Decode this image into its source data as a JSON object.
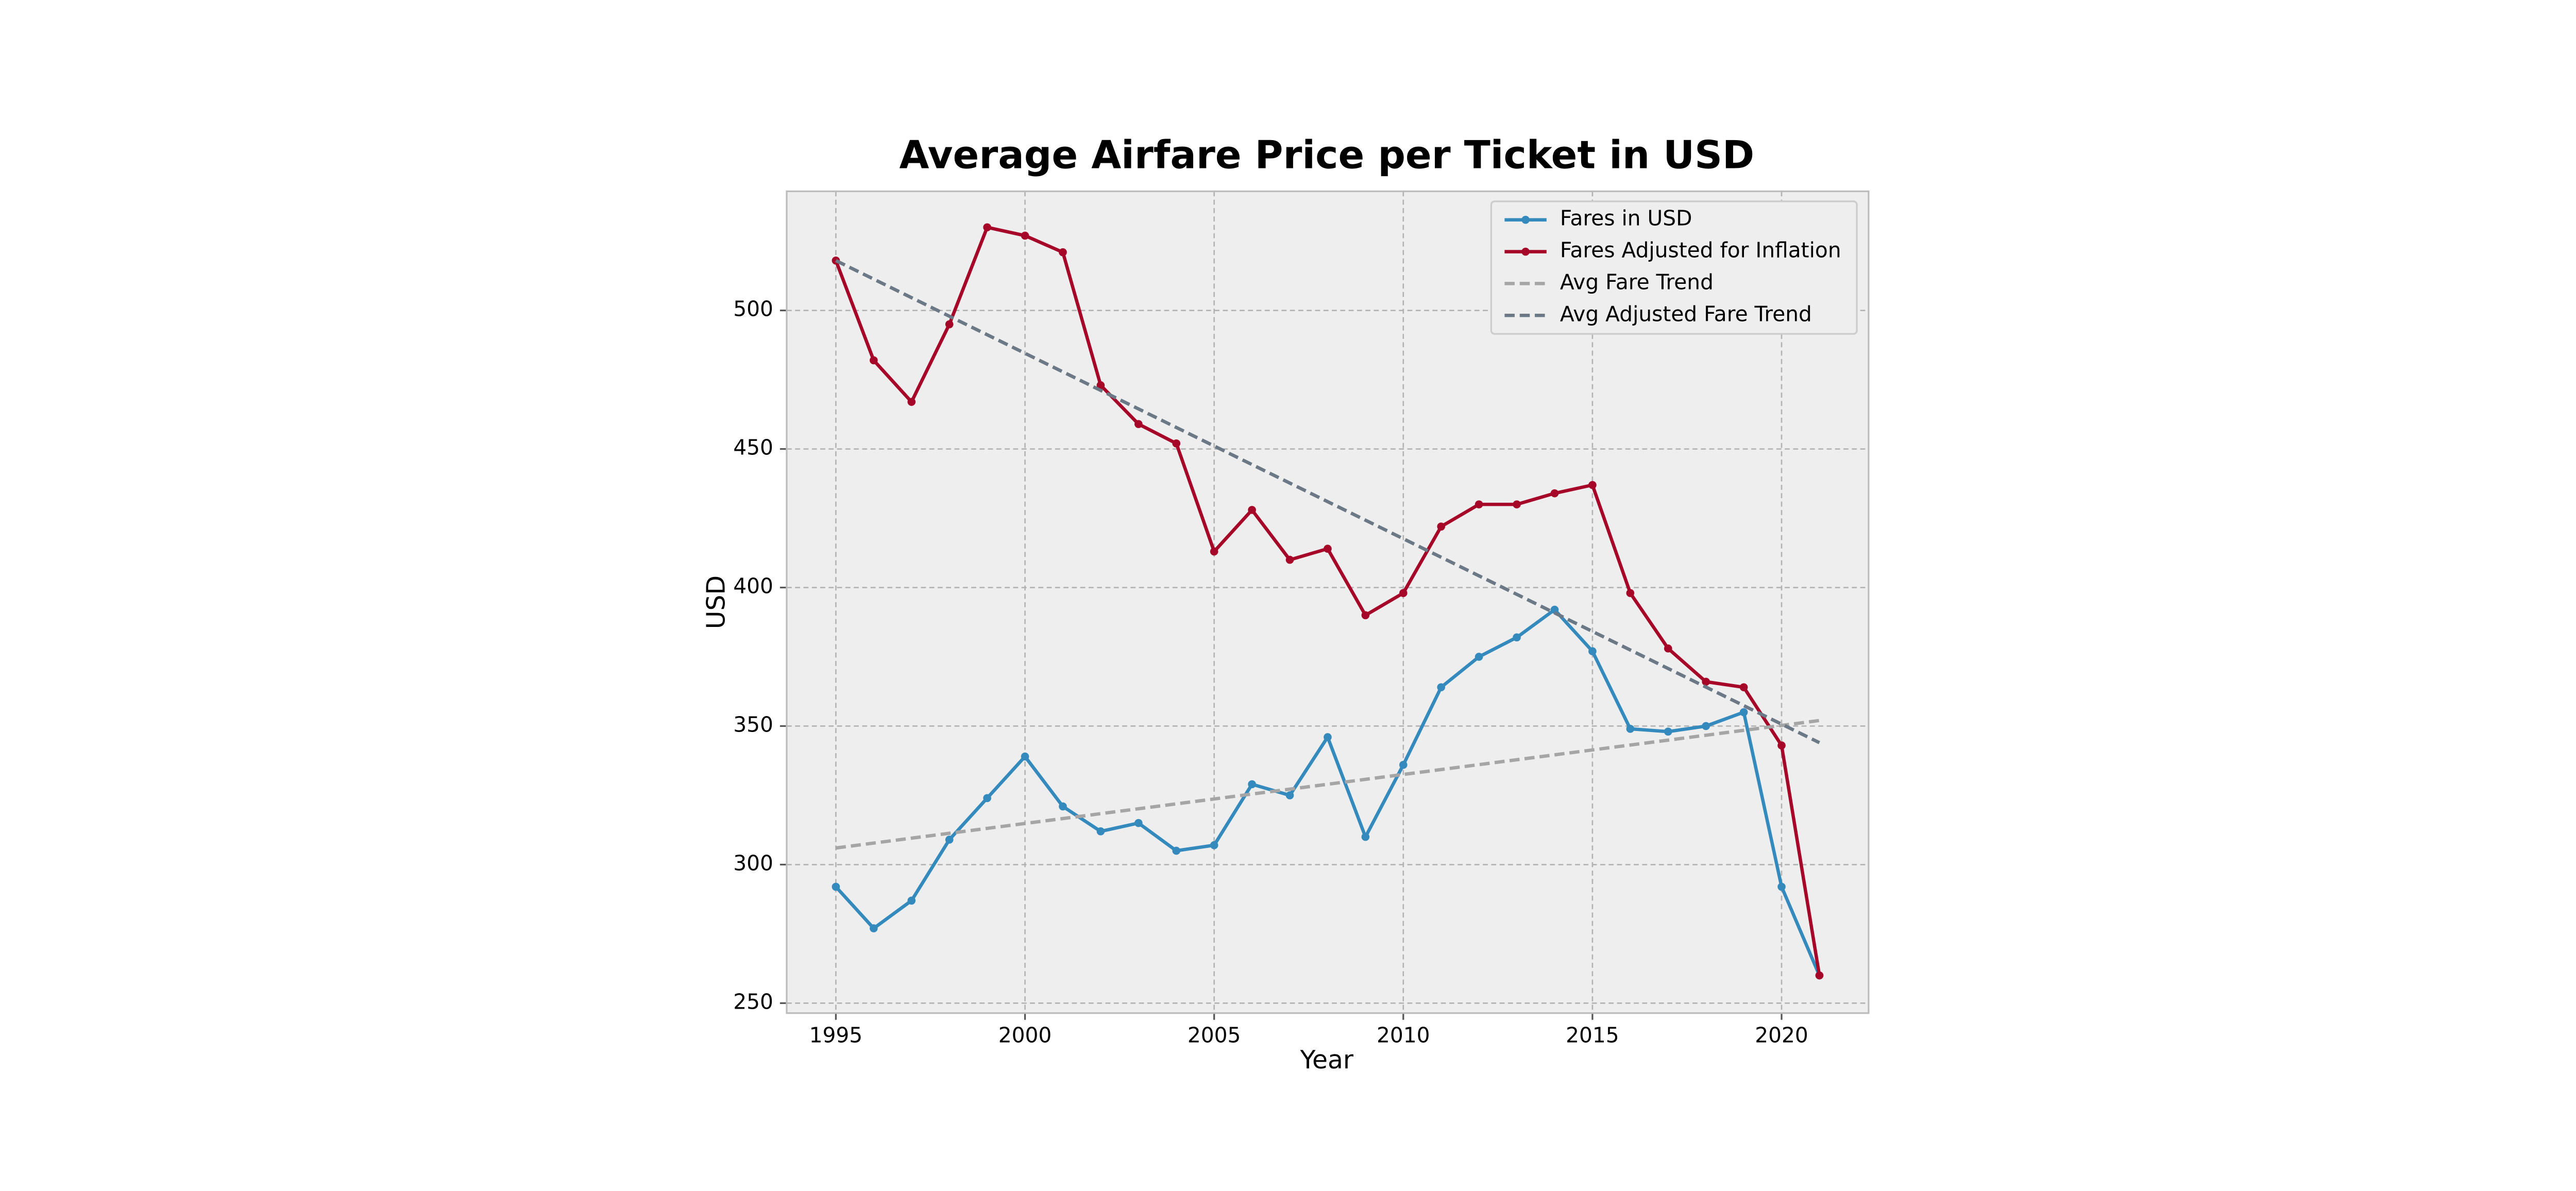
{
  "chart_data": {
    "type": "line",
    "title": "Average Airfare Price per Ticket in USD",
    "x_label": "Year",
    "y_label": "USD",
    "x": [
      1995,
      1996,
      1997,
      1998,
      1999,
      2000,
      2001,
      2002,
      2003,
      2004,
      2005,
      2006,
      2007,
      2008,
      2009,
      2010,
      2011,
      2012,
      2013,
      2014,
      2015,
      2016,
      2017,
      2018,
      2019,
      2020,
      2021
    ],
    "series": [
      {
        "name": "Fares in USD",
        "color": "#348abd",
        "marker": true,
        "linestyle": "solid",
        "values": [
          292,
          277,
          287,
          309,
          324,
          339,
          321,
          312,
          315,
          305,
          307,
          329,
          325,
          346,
          310,
          336,
          364,
          375,
          382,
          392,
          377,
          349,
          348,
          350,
          355,
          292,
          260
        ]
      },
      {
        "name": "Fares Adjusted for Inflation",
        "color": "#a60628",
        "marker": true,
        "linestyle": "solid",
        "values": [
          518,
          482,
          467,
          495,
          530,
          527,
          521,
          473,
          459,
          452,
          413,
          428,
          410,
          414,
          390,
          398,
          422,
          430,
          430,
          434,
          437,
          398,
          378,
          366,
          364,
          343,
          260
        ]
      },
      {
        "name": "Avg Fare Trend",
        "color": "#a5a5a5",
        "marker": false,
        "linestyle": "dashed",
        "x": [
          1995,
          2021
        ],
        "values": [
          306,
          352
        ]
      },
      {
        "name": "Avg Adjusted Fare Trend",
        "color": "#6b7886",
        "marker": false,
        "linestyle": "dashed",
        "x": [
          1995,
          2021
        ],
        "values": [
          518,
          344
        ]
      }
    ],
    "xlim": [
      1993.7,
      2022.3
    ],
    "ylim": [
      246.4,
      543
    ],
    "xticks": [
      1995,
      2000,
      2005,
      2010,
      2015,
      2020
    ],
    "yticks": [
      250,
      300,
      350,
      400,
      450,
      500
    ],
    "grid": true,
    "legend": "upper right"
  }
}
